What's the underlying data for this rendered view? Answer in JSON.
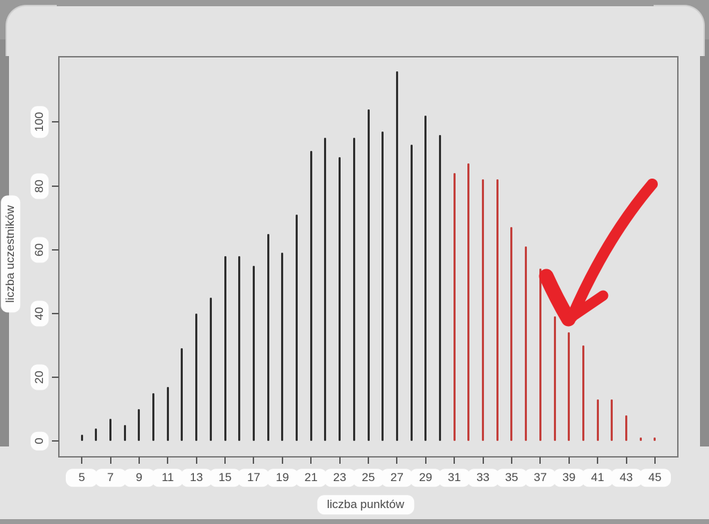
{
  "colors": {
    "black_bar": "#303030",
    "red_bar": "#c4403c",
    "arrow": "#e82329",
    "chip_bg": "#fdfdfd",
    "chip_text": "#4a4a4a",
    "plot_border": "#7a7a7a",
    "panel_bg": "#e3e3e3",
    "edge_strip": "#8c8c8c",
    "top_band": "#9a9a9a"
  },
  "chart_data": {
    "type": "bar",
    "bar_style": "thin-spike",
    "title": "",
    "xlabel": "liczba punktów",
    "ylabel": "liczba uczestników",
    "x": [
      5,
      6,
      7,
      8,
      9,
      10,
      11,
      12,
      13,
      14,
      15,
      16,
      17,
      18,
      19,
      20,
      21,
      22,
      23,
      24,
      25,
      26,
      27,
      28,
      29,
      30,
      31,
      32,
      33,
      34,
      35,
      36,
      37,
      38,
      39,
      40,
      41,
      42,
      43,
      44,
      45
    ],
    "values": [
      2,
      4,
      7,
      5,
      10,
      15,
      17,
      29,
      40,
      45,
      58,
      58,
      55,
      65,
      59,
      71,
      91,
      95,
      89,
      95,
      104,
      97,
      116,
      93,
      102,
      96,
      84,
      87,
      82,
      82,
      67,
      61,
      54,
      39,
      34,
      30,
      13,
      13,
      8,
      1,
      1
    ],
    "red_from": 31,
    "x_ticks": [
      5,
      7,
      9,
      11,
      13,
      15,
      17,
      19,
      21,
      23,
      25,
      27,
      29,
      31,
      33,
      35,
      37,
      39,
      41,
      43,
      45
    ],
    "y_ticks": [
      0,
      20,
      40,
      60,
      80,
      100
    ],
    "x_range_padded": [
      3.4,
      46.6
    ],
    "y_range_padded": [
      -5,
      120.5
    ],
    "grid": "off",
    "legend": "none",
    "annotation": {
      "type": "hand-drawn-arrow",
      "points_at_x": 39,
      "description": "thick red marker arrow curving from upper right down to the spike at x=39"
    }
  }
}
